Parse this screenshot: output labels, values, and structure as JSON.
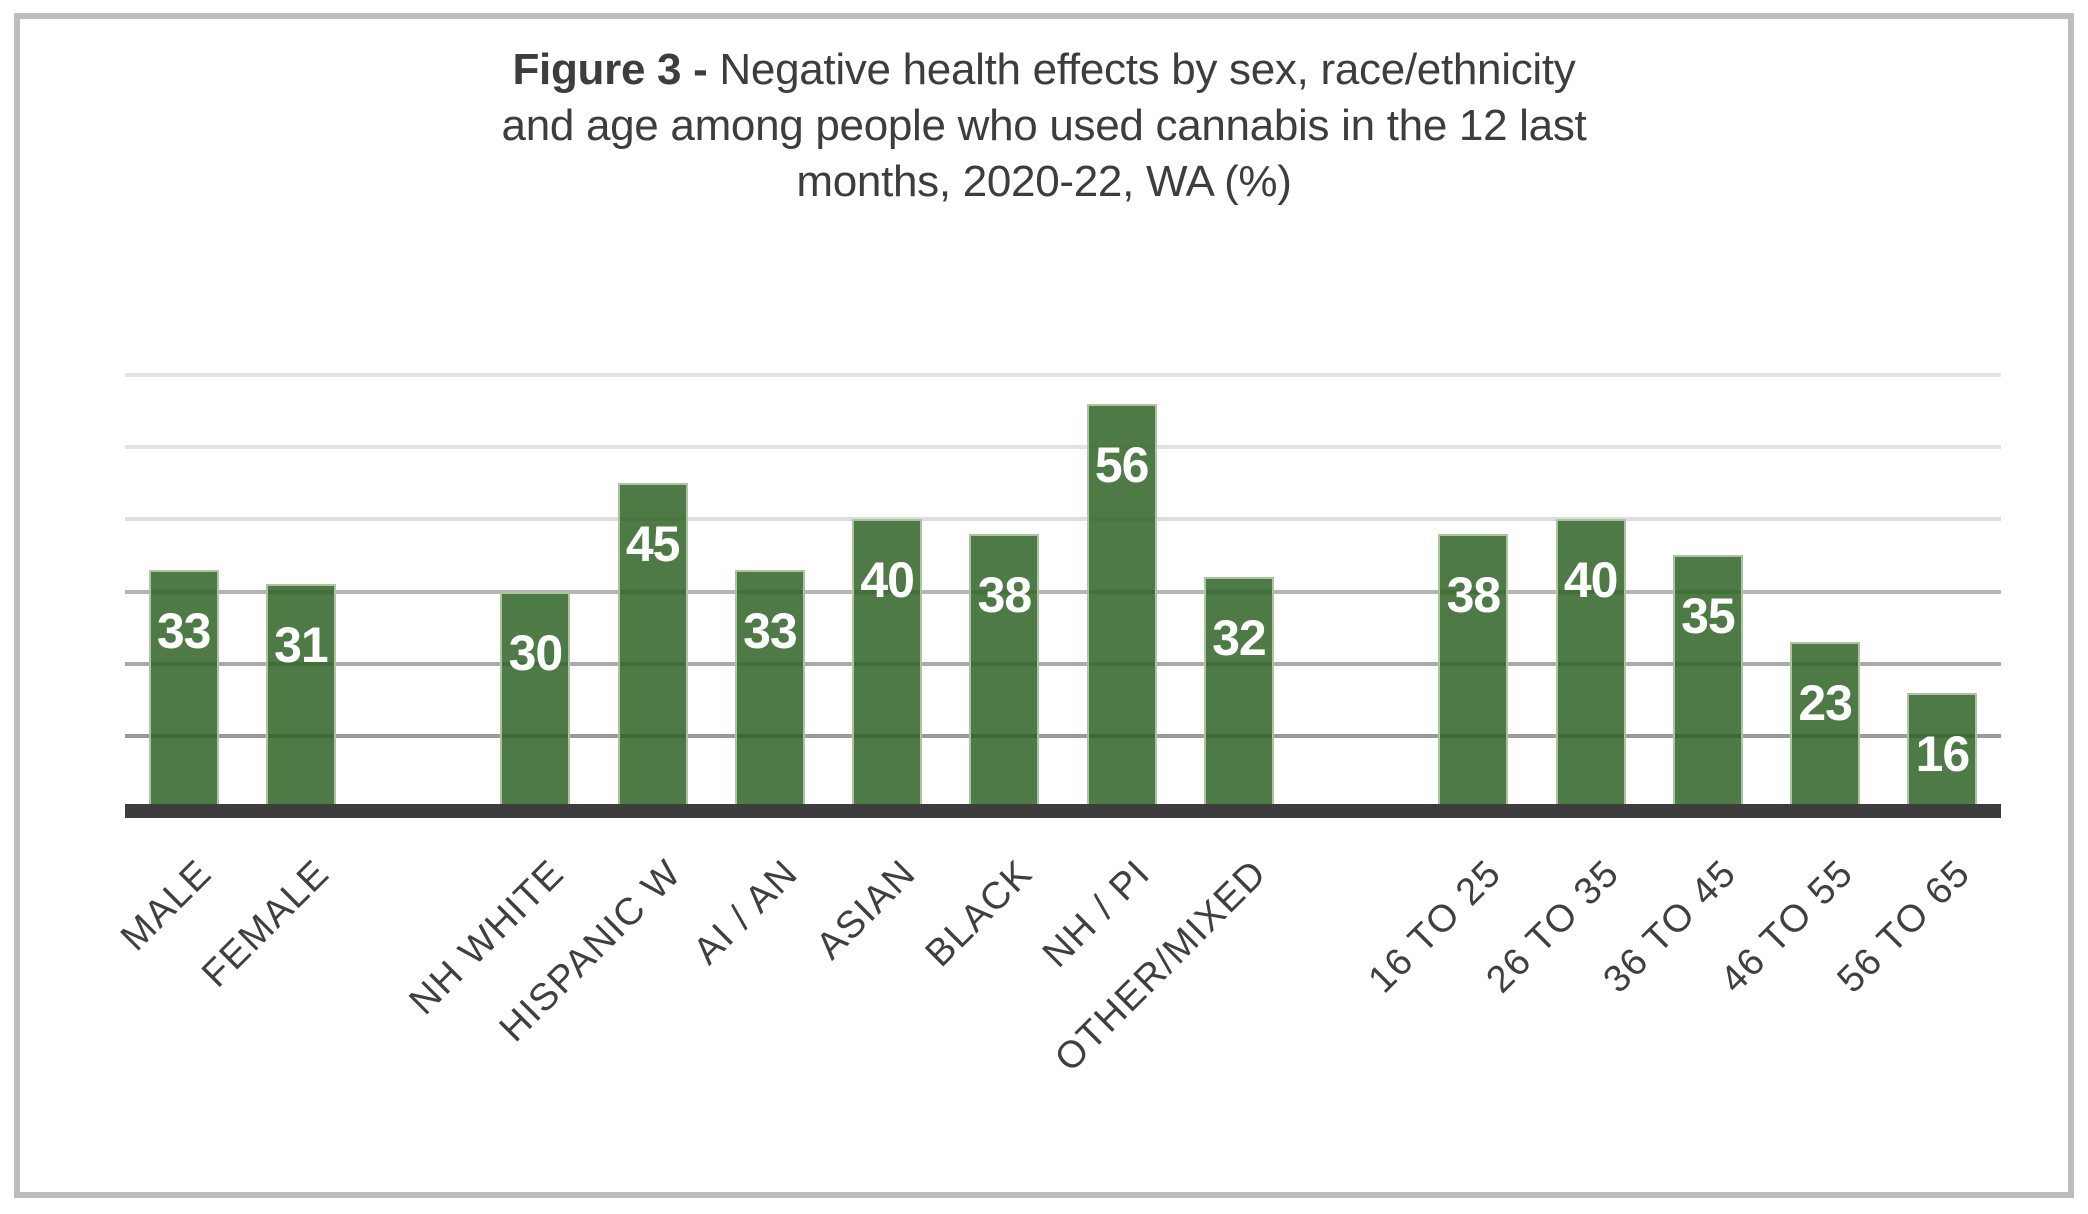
{
  "frame": {
    "border_color": "#bdbdbd"
  },
  "title": {
    "bold": "Figure 3 - ",
    "line1_rest": "Negative health effects by sex, race/ethnicity",
    "line2": "and age among people who used cannabis in the 12 last",
    "line3": "months, 2020-22, WA (%)"
  },
  "chart_data": {
    "type": "bar",
    "title": "Figure 3 - Negative health effects by sex, race/ethnicity and age among people who used cannabis in the 12 last months, 2020-22, WA (%)",
    "categories": [
      "MALE",
      "FEMALE",
      "NH WHITE",
      "HISPANIC W",
      "AI / AN",
      "ASIAN",
      "BLACK",
      "NH / PI",
      "OTHER/MIXED",
      "16 TO 25",
      "26 TO 35",
      "36 TO 45",
      "46 TO 55",
      "56 TO 65"
    ],
    "values": [
      33,
      31,
      30,
      45,
      33,
      40,
      38,
      56,
      32,
      38,
      40,
      35,
      23,
      16
    ],
    "slots": [
      0,
      1,
      3,
      4,
      5,
      6,
      7,
      8,
      9,
      11,
      12,
      13,
      14,
      15
    ],
    "total_slots": 16,
    "groups": {
      "sex": [
        "MALE",
        "FEMALE"
      ],
      "race_ethnicity": [
        "NH WHITE",
        "HISPANIC W",
        "AI / AN",
        "ASIAN",
        "BLACK",
        "NH / PI",
        "OTHER/MIXED"
      ],
      "age": [
        "16 TO 25",
        "26 TO 35",
        "36 TO 45",
        "46 TO 55",
        "56 TO 65"
      ]
    },
    "xlabel": "",
    "ylabel": "",
    "ylim": [
      0,
      60
    ],
    "grid_interval": 10,
    "grid_on": true,
    "legend": "none",
    "value_labels": "inside_end",
    "gridlines": [
      {
        "value": 10,
        "color": "#9a9a9a"
      },
      {
        "value": 20,
        "color": "#a9a9a9"
      },
      {
        "value": 30,
        "color": "#b5b5b5"
      },
      {
        "value": 40,
        "color": "#dedede"
      },
      {
        "value": 50,
        "color": "#e2e2e2"
      },
      {
        "value": 60,
        "color": "#e4e4e4"
      }
    ],
    "colors": {
      "bar_fill": "rgba(46,99,36,0.85)",
      "bar_fill_flat": "#4d7a45",
      "bar_border": "#aec3a3",
      "value_label": "#ffffff",
      "axis_line": "#3d3d3d",
      "tick_label": "#3f3f3f",
      "title_text": "#3d3d3d"
    }
  }
}
